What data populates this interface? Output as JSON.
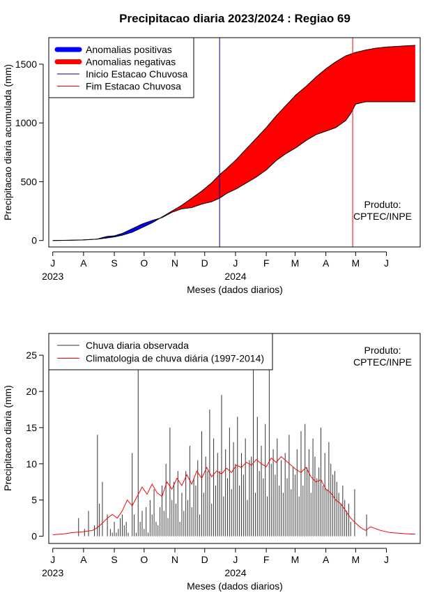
{
  "title": "Precipitacao diaria 2023/2024 : Regiao 69",
  "x_tick_labels": [
    "J",
    "A",
    "S",
    "O",
    "N",
    "D",
    "J",
    "F",
    "M",
    "A",
    "M",
    "J"
  ],
  "year_labels": [
    "2023",
    "2024"
  ],
  "product_label": [
    "Produto:",
    "CPTEC/INPE"
  ],
  "chart_data": [
    {
      "type": "area",
      "title": "Precipitacao diaria 2023/2024 : Regiao 69",
      "xlabel": "Meses (dados diarios)",
      "ylabel": "Precipitacao diaria acumulada (mm)",
      "x_unit": "days since 2023-07-01",
      "xlim": [
        -4,
        370
      ],
      "ylim": [
        -55,
        1725
      ],
      "yticks": [
        0,
        500,
        1000,
        1500
      ],
      "legend": {
        "placement": "top-left",
        "entries": [
          {
            "label": "Anomalias positivas",
            "color": "#0000ff",
            "style": "thick-line"
          },
          {
            "label": "Anomalias negativas",
            "color": "#ff0000",
            "style": "thick-line"
          },
          {
            "label": "Inicio Estacao Chuvosa",
            "color": "#00008b",
            "style": "thin-line"
          },
          {
            "label": "Fim Estacao Chuvosa",
            "color": "#ff0000",
            "style": "thin-line"
          }
        ]
      },
      "vlines": [
        {
          "name": "Inicio Estacao Chuvosa",
          "x": 168,
          "color": "#00008b"
        },
        {
          "name": "Fim Estacao Chuvosa",
          "x": 302,
          "color": "#ff0000"
        }
      ],
      "series": [
        {
          "name": "climatology-cumulative",
          "x": [
            0,
            15,
            30,
            45,
            55,
            62,
            70,
            80,
            90,
            100,
            110,
            120,
            130,
            140,
            150,
            160,
            168,
            175,
            185,
            195,
            205,
            215,
            225,
            235,
            245,
            255,
            265,
            275,
            285,
            295,
            305,
            315,
            325,
            335,
            345,
            355,
            365
          ],
          "y": [
            0,
            2,
            5,
            12,
            22,
            30,
            45,
            70,
            110,
            150,
            200,
            250,
            300,
            360,
            420,
            490,
            560,
            610,
            690,
            780,
            870,
            960,
            1060,
            1150,
            1240,
            1310,
            1390,
            1460,
            1520,
            1570,
            1600,
            1620,
            1635,
            1645,
            1650,
            1655,
            1660
          ]
        },
        {
          "name": "observed-cumulative",
          "x": [
            0,
            15,
            30,
            45,
            50,
            55,
            62,
            70,
            80,
            90,
            100,
            110,
            120,
            130,
            140,
            150,
            160,
            168,
            175,
            185,
            195,
            205,
            215,
            225,
            235,
            245,
            255,
            265,
            275,
            285,
            295,
            300,
            305,
            315,
            325,
            335,
            345,
            355,
            365
          ],
          "y": [
            0,
            1,
            4,
            12,
            25,
            35,
            40,
            60,
            100,
            140,
            170,
            195,
            240,
            270,
            280,
            310,
            330,
            360,
            400,
            440,
            490,
            540,
            600,
            680,
            740,
            790,
            850,
            900,
            930,
            960,
            1020,
            1080,
            1160,
            1180,
            1180,
            1180,
            1180,
            1180,
            1180
          ]
        }
      ],
      "annotation": [
        "Produto:",
        "CPTEC/INPE"
      ]
    },
    {
      "type": "bar",
      "xlabel": "Meses (dados diarios)",
      "ylabel": "Precipitacao diaria (mm)",
      "x_unit": "days since 2023-07-01",
      "xlim": [
        -4,
        370
      ],
      "ylim": [
        -1,
        28
      ],
      "yticks": [
        0,
        5,
        10,
        15,
        20,
        25
      ],
      "legend": {
        "placement": "top-left",
        "entries": [
          {
            "label": "Chuva diaria observada",
            "color": "#333333",
            "style": "thin-line"
          },
          {
            "label": "Climatologia de chuva diária (1997-2014)",
            "color": "#ff0000",
            "style": "thin-line"
          }
        ]
      },
      "bar_color": "#333333",
      "bars_x": [
        26,
        32,
        36,
        42,
        45,
        47,
        50,
        55,
        58,
        60,
        62,
        64,
        66,
        68,
        70,
        72,
        74,
        76,
        80,
        82,
        84,
        86,
        88,
        90,
        92,
        94,
        96,
        98,
        100,
        102,
        104,
        106,
        108,
        110,
        112,
        114,
        116,
        118,
        120,
        122,
        124,
        126,
        128,
        130,
        132,
        134,
        136,
        138,
        140,
        142,
        144,
        146,
        148,
        150,
        152,
        154,
        156,
        158,
        160,
        162,
        164,
        166,
        168,
        170,
        172,
        174,
        176,
        178,
        180,
        182,
        184,
        186,
        188,
        190,
        192,
        194,
        196,
        198,
        200,
        202,
        204,
        206,
        208,
        210,
        212,
        214,
        216,
        218,
        220,
        222,
        224,
        226,
        228,
        230,
        232,
        234,
        236,
        238,
        240,
        242,
        244,
        246,
        248,
        250,
        252,
        254,
        256,
        258,
        260,
        262,
        264,
        266,
        268,
        270,
        272,
        274,
        276,
        278,
        280,
        282,
        284,
        286,
        288,
        290,
        292,
        294,
        296,
        298,
        300,
        304,
        316
      ],
      "bars_y": [
        2.5,
        1,
        3.5,
        1.5,
        14,
        4.5,
        7.5,
        3,
        1,
        0.5,
        2,
        0.5,
        1,
        2.5,
        3,
        1.5,
        2,
        0.5,
        11.5,
        3,
        0.5,
        23,
        2,
        3.5,
        1,
        4,
        0.5,
        5,
        3,
        6.5,
        2,
        1.5,
        4,
        7,
        3.5,
        10,
        2.5,
        15,
        5,
        7.5,
        4.5,
        9,
        2,
        6,
        3.5,
        9,
        5,
        12.5,
        4,
        8,
        7,
        10.5,
        3,
        14.5,
        6,
        11,
        9,
        17.5,
        4.5,
        13.5,
        7,
        11.5,
        9,
        19.5,
        5.5,
        12,
        8,
        15,
        6.5,
        13,
        10,
        16.5,
        7,
        11.5,
        8.5,
        13.5,
        5,
        10.5,
        11,
        26,
        6,
        16.5,
        9,
        12.5,
        8,
        15.5,
        5.5,
        27.5,
        10,
        12,
        8.5,
        13.5,
        7,
        10.5,
        6,
        11.5,
        8,
        14,
        6.5,
        9.5,
        8.5,
        12,
        5.5,
        14.5,
        7,
        15.5,
        9.5,
        12,
        6,
        13.5,
        11,
        8,
        9.5,
        15,
        7,
        11.5,
        6.5,
        13,
        10,
        8.5,
        9,
        7.5,
        6,
        4.5,
        7,
        5,
        3.5,
        4.5,
        2,
        6.5,
        3
      ],
      "climatology": {
        "name": "Climatologia de chuva diária (1997-2014)",
        "color": "#ff0000",
        "x": [
          0,
          10,
          20,
          30,
          40,
          45,
          50,
          55,
          60,
          65,
          70,
          75,
          80,
          85,
          90,
          95,
          100,
          105,
          110,
          115,
          120,
          125,
          130,
          135,
          140,
          145,
          150,
          155,
          160,
          165,
          170,
          175,
          180,
          185,
          190,
          195,
          200,
          205,
          210,
          215,
          220,
          225,
          230,
          235,
          240,
          245,
          250,
          255,
          260,
          265,
          270,
          275,
          280,
          285,
          290,
          295,
          300,
          305,
          310,
          315,
          320,
          330,
          340,
          350,
          360,
          365
        ],
        "y": [
          0.2,
          0.3,
          0.5,
          0.6,
          0.8,
          1.2,
          1.8,
          2.5,
          3.0,
          2.5,
          3.5,
          5.0,
          4.2,
          5.5,
          6.8,
          5.8,
          7.2,
          6.0,
          5.5,
          7.5,
          6.5,
          8.0,
          7.0,
          8.5,
          7.2,
          9.0,
          8.0,
          9.5,
          8.2,
          9.0,
          8.6,
          9.4,
          8.8,
          9.8,
          9.5,
          10.2,
          9.8,
          10.6,
          10.0,
          9.6,
          10.8,
          10.2,
          11.0,
          10.4,
          9.8,
          9.2,
          8.8,
          9.5,
          8.2,
          7.5,
          7.8,
          6.5,
          6.0,
          5.0,
          4.5,
          3.5,
          2.5,
          1.8,
          1.2,
          0.8,
          1.3,
          0.8,
          0.5,
          0.4,
          0.3,
          0.3
        ]
      },
      "annotation": [
        "Produto:",
        "CPTEC/INPE"
      ]
    }
  ]
}
